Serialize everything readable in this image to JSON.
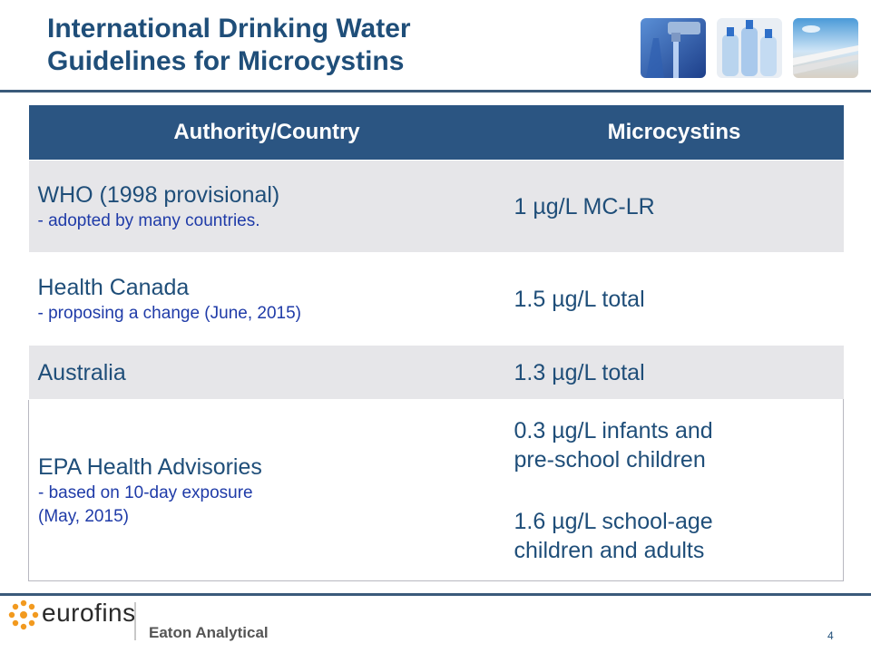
{
  "slide": {
    "title_lines": [
      "International Drinking Water",
      "Guidelines for Microcystins"
    ],
    "page_number": "4"
  },
  "table": {
    "headers": [
      "Authority/Country",
      "Microcystins"
    ],
    "rows": [
      {
        "authority": "WHO (1998 provisional)",
        "note": "- adopted by many countries.",
        "value": "1 µg/L MC-LR"
      },
      {
        "authority": "Health Canada",
        "note": "- proposing a change (June, 2015)",
        "value": "1.5 µg/L total"
      },
      {
        "authority": "Australia",
        "note": "",
        "value": "1.3 µg/L total"
      },
      {
        "authority": "EPA Health Advisories",
        "note_lines": [
          "- based on 10-day exposure",
          "(May, 2015)"
        ],
        "value_lines": [
          "0.3 µg/L infants and",
          "pre-school children",
          "1.6 µg/L school-age",
          "children and adults"
        ]
      }
    ]
  },
  "footer": {
    "logo_text": "eurofins",
    "logo_subtext": "Eaton Analytical"
  },
  "colors": {
    "title": "#1f4e79",
    "header_bg": "#2b5582",
    "note_text": "#1f3ba8",
    "row_alt": "#e6e6e9"
  },
  "icons": [
    "photo-faucet-icon",
    "photo-bottles-icon",
    "photo-pipes-icon",
    "eurofins-logo-icon"
  ]
}
